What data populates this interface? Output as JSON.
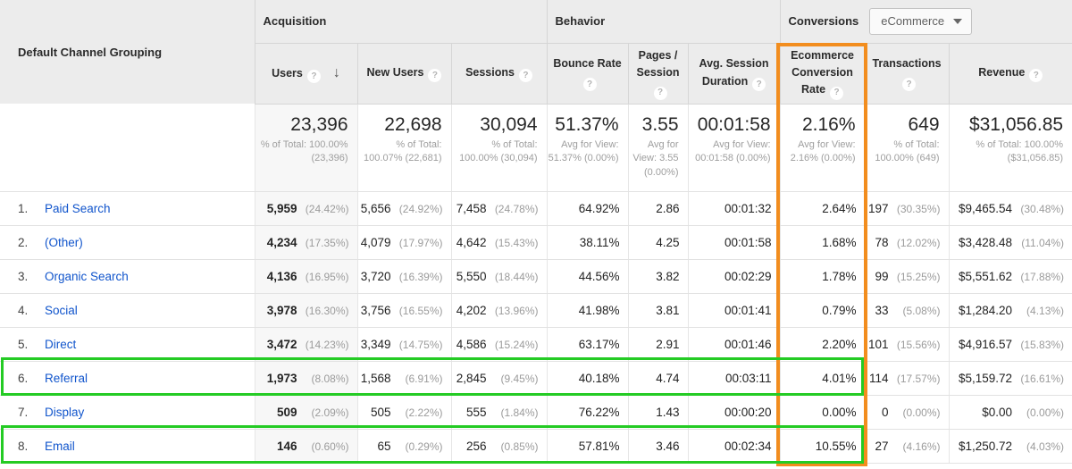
{
  "table": {
    "row_dimension_label": "Default Channel Grouping",
    "groups": [
      {
        "label": "Acquisition"
      },
      {
        "label": "Behavior"
      },
      {
        "label": "Conversions",
        "dropdown_value": "eCommerce"
      }
    ],
    "columns": [
      {
        "label": "Users",
        "help_icon": "question-mark",
        "sorted": "descending"
      },
      {
        "label": "New Users",
        "help_icon": "question-mark"
      },
      {
        "label": "Sessions",
        "help_icon": "question-mark"
      },
      {
        "label": "Bounce Rate",
        "help_icon": "question-mark"
      },
      {
        "label": "Pages / Session",
        "help_icon": "question-mark"
      },
      {
        "label": "Avg. Session Duration",
        "help_icon": "question-mark"
      },
      {
        "label": "Ecommerce Conversion Rate",
        "help_icon": "question-mark"
      },
      {
        "label": "Transactions",
        "help_icon": "question-mark"
      },
      {
        "label": "Revenue",
        "help_icon": "question-mark"
      }
    ],
    "totals": {
      "users": "23,396",
      "users_sub": "% of Total: 100.00% (23,396)",
      "new_users": "22,698",
      "new_users_sub": "% of Total: 100.07% (22,681)",
      "sessions": "30,094",
      "sessions_sub": "% of Total: 100.00% (30,094)",
      "bounce_rate": "51.37%",
      "bounce_rate_sub": "Avg for View: 51.37% (0.00%)",
      "pages_session": "3.55",
      "pages_session_sub": "Avg for View: 3.55 (0.00%)",
      "avg_duration": "00:01:58",
      "avg_duration_sub": "Avg for View: 00:01:58 (0.00%)",
      "conv_rate": "2.16%",
      "conv_rate_sub": "Avg for View: 2.16% (0.00%)",
      "transactions": "649",
      "transactions_sub": "% of Total: 100.00% (649)",
      "revenue": "$31,056.85",
      "revenue_sub": "% of Total: 100.00% ($31,056.85)"
    },
    "rows": [
      {
        "index": "1.",
        "channel": "Paid Search",
        "users": "5,959",
        "users_pct": "(24.42%)",
        "new_users": "5,656",
        "new_users_pct": "(24.92%)",
        "sessions": "7,458",
        "sessions_pct": "(24.78%)",
        "bounce_rate": "64.92%",
        "pages_session": "2.86",
        "avg_duration": "00:01:32",
        "conv_rate": "2.64%",
        "transactions": "197",
        "transactions_pct": "(30.35%)",
        "revenue": "$9,465.54",
        "revenue_pct": "(30.48%)"
      },
      {
        "index": "2.",
        "channel": "(Other)",
        "users": "4,234",
        "users_pct": "(17.35%)",
        "new_users": "4,079",
        "new_users_pct": "(17.97%)",
        "sessions": "4,642",
        "sessions_pct": "(15.43%)",
        "bounce_rate": "38.11%",
        "pages_session": "4.25",
        "avg_duration": "00:01:58",
        "conv_rate": "1.68%",
        "transactions": "78",
        "transactions_pct": "(12.02%)",
        "revenue": "$3,428.48",
        "revenue_pct": "(11.04%)"
      },
      {
        "index": "3.",
        "channel": "Organic Search",
        "users": "4,136",
        "users_pct": "(16.95%)",
        "new_users": "3,720",
        "new_users_pct": "(16.39%)",
        "sessions": "5,550",
        "sessions_pct": "(18.44%)",
        "bounce_rate": "44.56%",
        "pages_session": "3.82",
        "avg_duration": "00:02:29",
        "conv_rate": "1.78%",
        "transactions": "99",
        "transactions_pct": "(15.25%)",
        "revenue": "$5,551.62",
        "revenue_pct": "(17.88%)"
      },
      {
        "index": "4.",
        "channel": "Social",
        "users": "3,978",
        "users_pct": "(16.30%)",
        "new_users": "3,756",
        "new_users_pct": "(16.55%)",
        "sessions": "4,202",
        "sessions_pct": "(13.96%)",
        "bounce_rate": "41.98%",
        "pages_session": "3.81",
        "avg_duration": "00:01:41",
        "conv_rate": "0.79%",
        "transactions": "33",
        "transactions_pct": "(5.08%)",
        "revenue": "$1,284.20",
        "revenue_pct": "(4.13%)"
      },
      {
        "index": "5.",
        "channel": "Direct",
        "users": "3,472",
        "users_pct": "(14.23%)",
        "new_users": "3,349",
        "new_users_pct": "(14.75%)",
        "sessions": "4,586",
        "sessions_pct": "(15.24%)",
        "bounce_rate": "63.17%",
        "pages_session": "2.91",
        "avg_duration": "00:01:46",
        "conv_rate": "2.20%",
        "transactions": "101",
        "transactions_pct": "(15.56%)",
        "revenue": "$4,916.57",
        "revenue_pct": "(15.83%)"
      },
      {
        "index": "6.",
        "channel": "Referral",
        "users": "1,973",
        "users_pct": "(8.08%)",
        "new_users": "1,568",
        "new_users_pct": "(6.91%)",
        "sessions": "2,845",
        "sessions_pct": "(9.45%)",
        "bounce_rate": "40.18%",
        "pages_session": "4.74",
        "avg_duration": "00:03:11",
        "conv_rate": "4.01%",
        "transactions": "114",
        "transactions_pct": "(17.57%)",
        "revenue": "$5,159.72",
        "revenue_pct": "(16.61%)"
      },
      {
        "index": "7.",
        "channel": "Display",
        "users": "509",
        "users_pct": "(2.09%)",
        "new_users": "505",
        "new_users_pct": "(2.22%)",
        "sessions": "555",
        "sessions_pct": "(1.84%)",
        "bounce_rate": "76.22%",
        "pages_session": "1.43",
        "avg_duration": "00:00:20",
        "conv_rate": "0.00%",
        "transactions": "0",
        "transactions_pct": "(0.00%)",
        "revenue": "$0.00",
        "revenue_pct": "(0.00%)"
      },
      {
        "index": "8.",
        "channel": "Email",
        "users": "146",
        "users_pct": "(0.60%)",
        "new_users": "65",
        "new_users_pct": "(0.29%)",
        "sessions": "256",
        "sessions_pct": "(0.85%)",
        "bounce_rate": "57.81%",
        "pages_session": "3.46",
        "avg_duration": "00:02:34",
        "conv_rate": "10.55%",
        "transactions": "27",
        "transactions_pct": "(4.16%)",
        "revenue": "$1,250.72",
        "revenue_pct": "(4.03%)"
      }
    ]
  },
  "highlights": {
    "column_box_color": "#f28d1e",
    "column_box_target": "Ecommerce Conversion Rate",
    "row_box_color": "#24cb24",
    "row_box_targets": [
      "Referral",
      "Email"
    ]
  }
}
